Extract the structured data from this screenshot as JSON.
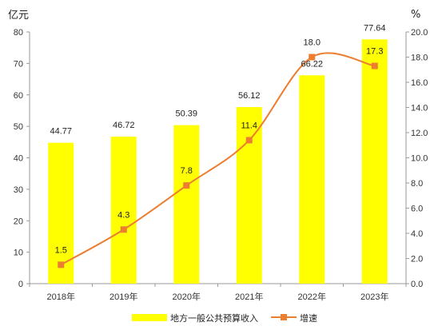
{
  "chart_data": {
    "type": "bar",
    "categories": [
      "2018年",
      "2019年",
      "2020年",
      "2021年",
      "2022年",
      "2023年"
    ],
    "series": [
      {
        "name": "地方一般公共预算收入",
        "type": "bar",
        "axis": "left",
        "color": "#ffff00",
        "values": [
          44.77,
          46.72,
          50.39,
          56.12,
          66.22,
          77.64
        ],
        "labels": [
          "44.77",
          "46.72",
          "50.39",
          "56.12",
          "66.22",
          "77.64"
        ]
      },
      {
        "name": "增速",
        "type": "line",
        "axis": "right",
        "color": "#ed7d31",
        "values": [
          1.5,
          4.3,
          7.8,
          11.4,
          18.0,
          17.3
        ],
        "labels": [
          "1.5",
          "4.3",
          "7.8",
          "11.4",
          "18.0",
          "17.3"
        ]
      }
    ],
    "y_left": {
      "unit": "亿元",
      "ylim": [
        0,
        80
      ],
      "ticks": [
        "0",
        "10",
        "20",
        "30",
        "40",
        "50",
        "60",
        "70",
        "80"
      ]
    },
    "y_right": {
      "unit": "%",
      "ylim": [
        0,
        20
      ],
      "ticks": [
        "0.0",
        "2.0",
        "4.0",
        "6.0",
        "8.0",
        "10.0",
        "12.0",
        "14.0",
        "16.0",
        "18.0",
        "20.0"
      ]
    },
    "grid": false,
    "legend": "bottom"
  }
}
